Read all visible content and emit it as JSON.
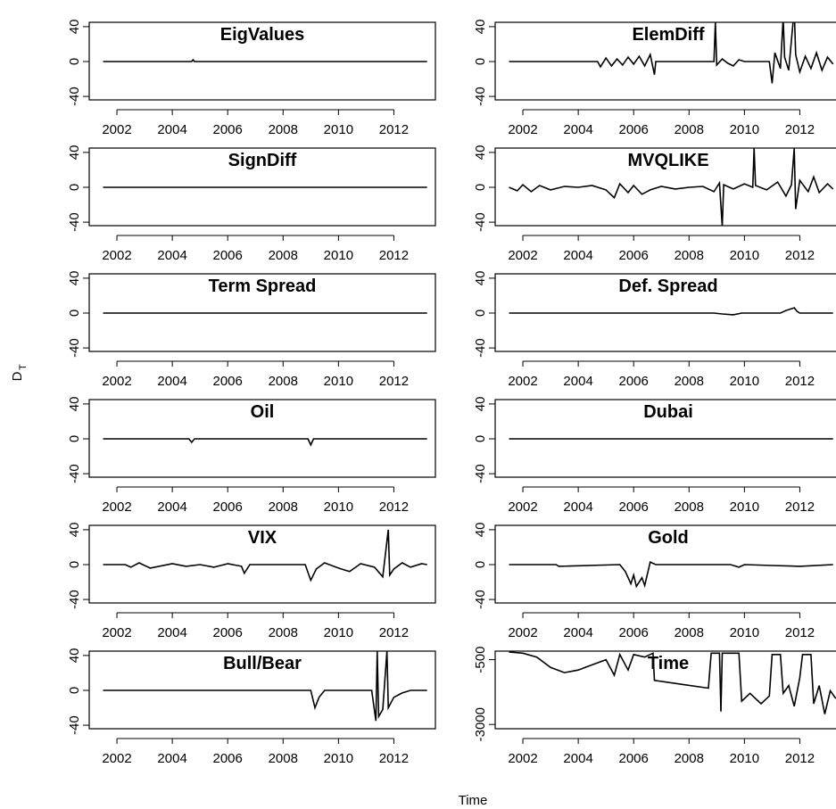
{
  "ylabel": "D",
  "ylabel_sub": "T",
  "xlabel": "Time",
  "chart_data": [
    {
      "type": "line",
      "title": "EigValues",
      "x": [
        2001.5,
        2004.7,
        2004.75,
        2004.8,
        2013.2
      ],
      "values": [
        0,
        0,
        2,
        0,
        0
      ],
      "xlim": [
        2001,
        2013.5
      ],
      "ylim": [
        -44,
        45
      ],
      "xticks": [
        2002,
        2004,
        2006,
        2008,
        2010,
        2012
      ],
      "yticks": [
        -40,
        0,
        40
      ]
    },
    {
      "type": "line",
      "title": "ElemDiff",
      "x": [
        2001.5,
        2004.7,
        2004.8,
        2005,
        2005.2,
        2005.4,
        2005.6,
        2005.8,
        2006,
        2006.2,
        2006.4,
        2006.6,
        2006.75,
        2006.8,
        2008.9,
        2008.95,
        2009,
        2009.2,
        2009.4,
        2009.6,
        2009.8,
        2010,
        2010.9,
        2011,
        2011.1,
        2011.3,
        2011.4,
        2011.45,
        2011.6,
        2011.8,
        2011.85,
        2012,
        2012.2,
        2012.4,
        2012.6,
        2012.8,
        2013,
        2013.2
      ],
      "values": [
        0,
        0,
        -6,
        4,
        -5,
        3,
        -4,
        5,
        -3,
        6,
        -5,
        8,
        -15,
        0,
        0,
        45,
        -4,
        3,
        -2,
        -5,
        2,
        0,
        0,
        -25,
        10,
        -8,
        50,
        5,
        -10,
        60,
        8,
        -12,
        6,
        -8,
        10,
        -10,
        5,
        -3
      ],
      "xlim": [
        2001,
        2013.5
      ],
      "ylim": [
        -44,
        45
      ],
      "xticks": [
        2002,
        2004,
        2006,
        2008,
        2010,
        2012
      ],
      "yticks": [
        -40,
        0,
        40
      ]
    },
    {
      "type": "line",
      "title": "SignDiff",
      "x": [
        2001.5,
        2013.2
      ],
      "values": [
        0,
        0
      ],
      "xlim": [
        2001,
        2013.5
      ],
      "ylim": [
        -44,
        45
      ],
      "xticks": [
        2002,
        2004,
        2006,
        2008,
        2010,
        2012
      ],
      "yticks": [
        -40,
        0,
        40
      ]
    },
    {
      "type": "line",
      "title": "MVQLIKE",
      "x": [
        2001.5,
        2001.8,
        2002,
        2002.3,
        2002.6,
        2003,
        2003.5,
        2004,
        2004.5,
        2005,
        2005.3,
        2005.5,
        2005.8,
        2006,
        2006.3,
        2006.6,
        2007,
        2007.5,
        2008,
        2008.5,
        2008.9,
        2009.1,
        2009.2,
        2009.25,
        2009.6,
        2010,
        2010.3,
        2010.35,
        2010.4,
        2010.8,
        2011.2,
        2011.5,
        2011.7,
        2011.8,
        2011.85,
        2012,
        2012.3,
        2012.5,
        2012.7,
        2013,
        2013.2
      ],
      "values": [
        0,
        -4,
        3,
        -5,
        2,
        -3,
        1,
        0,
        2,
        -3,
        -12,
        4,
        -6,
        2,
        -8,
        -3,
        1,
        -2,
        0,
        1,
        -5,
        5,
        -45,
        3,
        -2,
        4,
        0,
        45,
        2,
        -3,
        6,
        -10,
        3,
        45,
        -25,
        8,
        -5,
        12,
        -6,
        4,
        -2
      ],
      "xlim": [
        2001,
        2013.5
      ],
      "ylim": [
        -44,
        45
      ],
      "xticks": [
        2002,
        2004,
        2006,
        2008,
        2010,
        2012
      ],
      "yticks": [
        -40,
        0,
        40
      ]
    },
    {
      "type": "line",
      "title": "Term Spread",
      "x": [
        2001.5,
        2013.2
      ],
      "values": [
        0,
        0
      ],
      "xlim": [
        2001,
        2013.5
      ],
      "ylim": [
        -44,
        45
      ],
      "xticks": [
        2002,
        2004,
        2006,
        2008,
        2010,
        2012
      ],
      "yticks": [
        -40,
        0,
        40
      ]
    },
    {
      "type": "line",
      "title": "Def. Spread",
      "x": [
        2001.5,
        2008.9,
        2009.2,
        2009.6,
        2009.9,
        2011.3,
        2011.5,
        2011.8,
        2011.9,
        2012,
        2013.2
      ],
      "values": [
        0,
        0,
        -1,
        -2,
        0,
        0,
        3,
        6,
        2,
        0,
        0
      ],
      "xlim": [
        2001,
        2013.5
      ],
      "ylim": [
        -44,
        45
      ],
      "xticks": [
        2002,
        2004,
        2006,
        2008,
        2010,
        2012
      ],
      "yticks": [
        -40,
        0,
        40
      ]
    },
    {
      "type": "line",
      "title": "Oil",
      "x": [
        2001.5,
        2004.6,
        2004.7,
        2004.8,
        2008.9,
        2009,
        2009.1,
        2013.2
      ],
      "values": [
        0,
        0,
        -4,
        0,
        0,
        -7,
        0,
        0
      ],
      "xlim": [
        2001,
        2013.5
      ],
      "ylim": [
        -44,
        45
      ],
      "xticks": [
        2002,
        2004,
        2006,
        2008,
        2010,
        2012
      ],
      "yticks": [
        -40,
        0,
        40
      ]
    },
    {
      "type": "line",
      "title": "Dubai",
      "x": [
        2001.5,
        2013.2
      ],
      "values": [
        0,
        0
      ],
      "xlim": [
        2001,
        2013.5
      ],
      "ylim": [
        -44,
        45
      ],
      "xticks": [
        2002,
        2004,
        2006,
        2008,
        2010,
        2012
      ],
      "yticks": [
        -40,
        0,
        40
      ]
    },
    {
      "type": "line",
      "title": "VIX",
      "x": [
        2001.5,
        2002.3,
        2002.5,
        2002.8,
        2003.2,
        2004,
        2004.5,
        2005,
        2005.5,
        2006,
        2006.5,
        2006.6,
        2006.8,
        2008.8,
        2009,
        2009.2,
        2009.5,
        2010,
        2010.4,
        2010.8,
        2011.3,
        2011.6,
        2011.8,
        2011.85,
        2012,
        2012.3,
        2012.6,
        2013,
        2013.2
      ],
      "values": [
        0,
        0,
        -3,
        2,
        -4,
        1,
        -2,
        0,
        -3,
        1,
        -2,
        -10,
        0,
        0,
        -18,
        -5,
        2,
        -4,
        -8,
        1,
        -3,
        -14,
        40,
        -12,
        -5,
        2,
        -3,
        1,
        0
      ],
      "xlim": [
        2001,
        2013.5
      ],
      "ylim": [
        -44,
        45
      ],
      "xticks": [
        2002,
        2004,
        2006,
        2008,
        2010,
        2012
      ],
      "yticks": [
        -40,
        0,
        40
      ]
    },
    {
      "type": "line",
      "title": "Gold",
      "x": [
        2001.5,
        2003.2,
        2003.3,
        2005.5,
        2005.7,
        2005.9,
        2006,
        2006.1,
        2006.3,
        2006.4,
        2006.6,
        2006.8,
        2009.5,
        2009.8,
        2010,
        2011,
        2012,
        2013.2
      ],
      "values": [
        0,
        0,
        -2,
        0,
        -8,
        -22,
        -12,
        -25,
        -15,
        -24,
        3,
        0,
        0,
        -3,
        0,
        -1,
        -2,
        0
      ],
      "xlim": [
        2001,
        2013.5
      ],
      "ylim": [
        -44,
        45
      ],
      "xticks": [
        2002,
        2004,
        2006,
        2008,
        2010,
        2012
      ],
      "yticks": [
        -40,
        0,
        40
      ]
    },
    {
      "type": "line",
      "title": "Bull/Bear",
      "x": [
        2001.5,
        2009,
        2009.15,
        2009.3,
        2009.5,
        2011.2,
        2011.35,
        2011.4,
        2011.45,
        2011.6,
        2011.75,
        2011.8,
        2012,
        2012.3,
        2012.6,
        2013.2
      ],
      "values": [
        0,
        0,
        -20,
        -8,
        0,
        0,
        -35,
        45,
        -30,
        -22,
        45,
        -20,
        -8,
        -3,
        0,
        0
      ],
      "xlim": [
        2001,
        2013.5
      ],
      "ylim": [
        -44,
        45
      ],
      "xticks": [
        2002,
        2004,
        2006,
        2008,
        2010,
        2012
      ],
      "yticks": [
        -40,
        0,
        40
      ]
    },
    {
      "type": "line",
      "title": "Time",
      "x": [
        2001.5,
        2002,
        2002.5,
        2003,
        2003.5,
        2004,
        2004.5,
        2005,
        2005.3,
        2005.5,
        2005.8,
        2006,
        2006.4,
        2006.7,
        2006.75,
        2008.7,
        2008.8,
        2009.1,
        2009.15,
        2009.2,
        2009.8,
        2009.9,
        2010.2,
        2010.6,
        2010.9,
        2011,
        2011.3,
        2011.4,
        2011.6,
        2011.8,
        2012,
        2012.1,
        2012.4,
        2012.5,
        2012.7,
        2012.9,
        2013.1,
        2013.3
      ],
      "values": [
        -200,
        -250,
        -400,
        -800,
        -1000,
        -900,
        -700,
        -500,
        -1100,
        -300,
        -900,
        -300,
        -400,
        -250,
        -1300,
        -1600,
        -250,
        -250,
        -2500,
        -250,
        -250,
        -2100,
        -1800,
        -2200,
        -1900,
        -300,
        -300,
        -1800,
        -1500,
        -2300,
        -1200,
        -300,
        -300,
        -2200,
        -1500,
        -2600,
        -1700,
        -2000
      ],
      "xlim": [
        2001,
        2013.5
      ],
      "ylim": [
        -3165,
        -170
      ],
      "xticks": [
        2002,
        2004,
        2006,
        2008,
        2010,
        2012
      ],
      "yticks": [
        -3000,
        -500
      ]
    }
  ]
}
